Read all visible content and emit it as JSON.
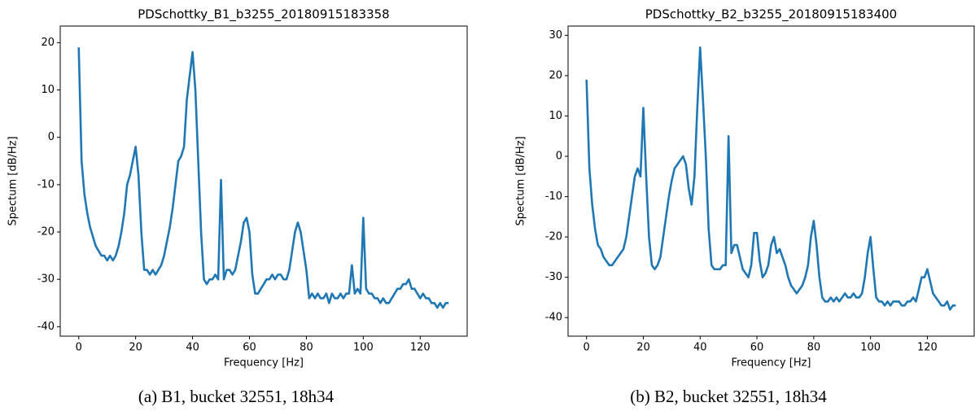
{
  "chart_data": [
    {
      "type": "line",
      "title": "PDSchottky_B1_b3255_20180915183358",
      "xlabel": "Frequency [Hz]",
      "ylabel": "Spectum [dB/Hz]",
      "caption": "(a) B1, bucket 32551, 18h34",
      "color": "#1f77b4",
      "xlim": [
        -6.5,
        136.5
      ],
      "ylim": [
        -42,
        23.5
      ],
      "xticks": [
        0,
        20,
        40,
        60,
        80,
        100,
        120
      ],
      "yticks": [
        -40,
        -30,
        -20,
        -10,
        0,
        10,
        20
      ],
      "x": [
        0,
        1,
        2,
        3,
        4,
        5,
        6,
        7,
        8,
        9,
        10,
        11,
        12,
        13,
        14,
        15,
        16,
        17,
        18,
        19,
        20,
        21,
        22,
        23,
        24,
        25,
        26,
        27,
        28,
        29,
        30,
        31,
        32,
        33,
        34,
        35,
        36,
        37,
        38,
        39,
        40,
        41,
        42,
        43,
        44,
        45,
        46,
        47,
        48,
        49,
        50,
        51,
        52,
        53,
        54,
        55,
        56,
        57,
        58,
        59,
        60,
        61,
        62,
        63,
        64,
        65,
        66,
        67,
        68,
        69,
        70,
        71,
        72,
        73,
        74,
        75,
        76,
        77,
        78,
        79,
        80,
        81,
        82,
        83,
        84,
        85,
        86,
        87,
        88,
        89,
        90,
        91,
        92,
        93,
        94,
        95,
        96,
        97,
        98,
        99,
        100,
        101,
        102,
        103,
        104,
        105,
        106,
        107,
        108,
        109,
        110,
        111,
        112,
        113,
        114,
        115,
        116,
        117,
        118,
        119,
        120,
        121,
        122,
        123,
        124,
        125,
        126,
        127,
        128,
        129,
        130
      ],
      "values": [
        19,
        -5,
        -12,
        -16,
        -19,
        -21,
        -23,
        -24,
        -25,
        -25,
        -26,
        -25,
        -26,
        -25,
        -23,
        -20,
        -16,
        -10,
        -8,
        -5,
        -2,
        -8,
        -20,
        -28,
        -28,
        -29,
        -28,
        -29,
        -28,
        -27,
        -25,
        -22,
        -19,
        -15,
        -10,
        -5,
        -4,
        -2,
        8,
        13,
        18,
        10,
        -5,
        -20,
        -30,
        -31,
        -30,
        -30,
        -29,
        -30,
        -9,
        -30,
        -28,
        -28,
        -29,
        -28,
        -25,
        -22,
        -18,
        -17,
        -20,
        -29,
        -33,
        -33,
        -32,
        -31,
        -30,
        -30,
        -29,
        -30,
        -29,
        -29,
        -30,
        -30,
        -28,
        -24,
        -20,
        -18,
        -20,
        -24,
        -28,
        -34,
        -33,
        -34,
        -33,
        -34,
        -34,
        -33,
        -35,
        -33,
        -34,
        -34,
        -33,
        -34,
        -33,
        -33,
        -27,
        -33,
        -32,
        -33,
        -17,
        -32,
        -33,
        -33,
        -34,
        -34,
        -35,
        -34,
        -35,
        -35,
        -34,
        -33,
        -32,
        -32,
        -31,
        -31,
        -30,
        -32,
        -32,
        -33,
        -34,
        -33,
        -34,
        -34,
        -35,
        -35,
        -36,
        -35,
        -36,
        -35,
        -35
      ]
    },
    {
      "type": "line",
      "title": "PDSchottky_B2_b3255_20180915183400",
      "xlabel": "Frequency [Hz]",
      "ylabel": "Spectum [dB/Hz]",
      "caption": "(b) B2, bucket 32551, 18h34",
      "color": "#1f77b4",
      "xlim": [
        -6.5,
        136.5
      ],
      "ylim": [
        -44.6,
        32.3
      ],
      "xticks": [
        0,
        20,
        40,
        60,
        80,
        100,
        120
      ],
      "yticks": [
        -40,
        -30,
        -20,
        -10,
        0,
        10,
        20,
        30
      ],
      "x": [
        0,
        1,
        2,
        3,
        4,
        5,
        6,
        7,
        8,
        9,
        10,
        11,
        12,
        13,
        14,
        15,
        16,
        17,
        18,
        19,
        20,
        21,
        22,
        23,
        24,
        25,
        26,
        27,
        28,
        29,
        30,
        31,
        32,
        33,
        34,
        35,
        36,
        37,
        38,
        39,
        40,
        41,
        42,
        43,
        44,
        45,
        46,
        47,
        48,
        49,
        50,
        51,
        52,
        53,
        54,
        55,
        56,
        57,
        58,
        59,
        60,
        61,
        62,
        63,
        64,
        65,
        66,
        67,
        68,
        69,
        70,
        71,
        72,
        73,
        74,
        75,
        76,
        77,
        78,
        79,
        80,
        81,
        82,
        83,
        84,
        85,
        86,
        87,
        88,
        89,
        90,
        91,
        92,
        93,
        94,
        95,
        96,
        97,
        98,
        99,
        100,
        101,
        102,
        103,
        104,
        105,
        106,
        107,
        108,
        109,
        110,
        111,
        112,
        113,
        114,
        115,
        116,
        117,
        118,
        119,
        120,
        121,
        122,
        123,
        124,
        125,
        126,
        127,
        128,
        129,
        130
      ],
      "values": [
        19,
        -3,
        -12,
        -18,
        -22,
        -23,
        -25,
        -26,
        -27,
        -27,
        -26,
        -25,
        -24,
        -23,
        -20,
        -15,
        -10,
        -5,
        -3,
        -5,
        12,
        -5,
        -20,
        -27,
        -28,
        -27,
        -25,
        -20,
        -15,
        -10,
        -6,
        -3,
        -2,
        -1,
        0,
        -2,
        -8,
        -12,
        -5,
        12,
        27,
        14,
        0,
        -18,
        -27,
        -28,
        -28,
        -28,
        -27,
        -27,
        5,
        -24,
        -22,
        -22,
        -25,
        -28,
        -29,
        -30,
        -27,
        -19,
        -19,
        -26,
        -30,
        -29,
        -27,
        -22,
        -20,
        -24,
        -23,
        -25,
        -27,
        -30,
        -32,
        -33,
        -34,
        -33,
        -32,
        -30,
        -27,
        -20,
        -16,
        -22,
        -30,
        -35,
        -36,
        -36,
        -35,
        -36,
        -35,
        -36,
        -35,
        -34,
        -35,
        -35,
        -34,
        -35,
        -35,
        -34,
        -30,
        -24,
        -20,
        -28,
        -35,
        -36,
        -36,
        -37,
        -36,
        -37,
        -36,
        -36,
        -36,
        -37,
        -37,
        -36,
        -36,
        -35,
        -36,
        -33,
        -30,
        -30,
        -28,
        -31,
        -34,
        -35,
        -36,
        -37,
        -37,
        -36,
        -38,
        -37,
        -37
      ]
    }
  ]
}
